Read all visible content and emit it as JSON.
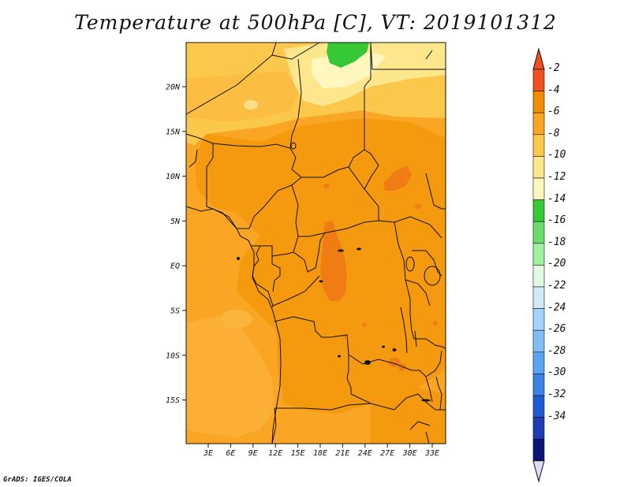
{
  "title": "Temperature at 500hPa [C], VT: 2019101312",
  "credit": "GrADS: IGES/COLA",
  "lat_ticks": [
    "20N",
    "15N",
    "10N",
    "5N",
    "EQ",
    "5S",
    "10S",
    "15S"
  ],
  "lon_ticks": [
    "3E",
    "6E",
    "9E",
    "12E",
    "15E",
    "18E",
    "21E",
    "24E",
    "27E",
    "30E",
    "33E"
  ],
  "colorbar": {
    "labels": [
      "-2",
      "-4",
      "-6",
      "-8",
      "-10",
      "-12",
      "-14",
      "-16",
      "-18",
      "-20",
      "-22",
      "-24",
      "-26",
      "-28",
      "-30",
      "-32",
      "-34"
    ],
    "colors": [
      "#f0501e",
      "#f08c00",
      "#faa523",
      "#fbc84b",
      "#fde68c",
      "#fef8be",
      "#37c837",
      "#6bdc6b",
      "#a0f0a0",
      "#e1fae1",
      "#d0eaf8",
      "#a4d4f8",
      "#82bef5",
      "#5aa5f0",
      "#3c82e6",
      "#1e5ad2",
      "#1e3cb4",
      "#0a1478"
    ],
    "max_tip": "#f0501e",
    "min_tip": "#dcdcfa"
  },
  "field_colors": {
    "base": "#faa523",
    "core": "#f59a0e",
    "warm": "#f07d14",
    "cool": "#fbc84b",
    "pale": "#fde68c",
    "green": "#37c837"
  }
}
